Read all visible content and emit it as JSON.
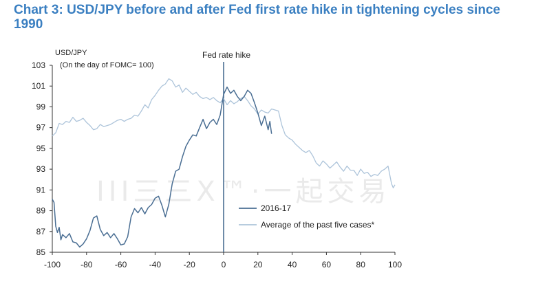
{
  "title": "Chart 3: USD/JPY before and after Fed first rate hike in tightening cycles since 1990",
  "watermark": "III三三X™·一起交易",
  "colors": {
    "title": "#3a7fc1",
    "series_dark": "#4a6e93",
    "series_light": "#adc4da",
    "axis": "#333333"
  },
  "chart_data": {
    "type": "line",
    "y_axis_label": "USD/JPY",
    "y_axis_sublabel": "(On the day of FOMC= 100)",
    "annotation": "Fed rate hike",
    "annotation_x": 0,
    "xlim": [
      -100,
      100
    ],
    "ylim": [
      85,
      103
    ],
    "x_ticks": [
      -100,
      -80,
      -60,
      -40,
      -20,
      0,
      20,
      40,
      60,
      80,
      100
    ],
    "x_tick_labels": [
      "-100",
      "-80",
      "-60",
      "-40",
      "-20",
      "0",
      "20",
      "40",
      "60",
      "80",
      "100"
    ],
    "y_ticks": [
      85,
      87,
      89,
      91,
      93,
      95,
      97,
      99,
      101,
      103
    ],
    "y_tick_labels": [
      "85",
      "87",
      "89",
      "91",
      "93",
      "95",
      "97",
      "99",
      "101",
      "103"
    ],
    "legend_position": "bottom-center",
    "series": [
      {
        "name": "2016-17",
        "color": "#4a6e93",
        "x": [
          -100,
          -99,
          -98,
          -97,
          -96,
          -95,
          -94,
          -92,
          -90,
          -88,
          -86,
          -84,
          -82,
          -80,
          -78,
          -76,
          -74,
          -72,
          -70,
          -68,
          -66,
          -64,
          -62,
          -60,
          -58,
          -56,
          -54,
          -52,
          -50,
          -48,
          -46,
          -44,
          -42,
          -40,
          -38,
          -36,
          -34,
          -32,
          -30,
          -28,
          -26,
          -24,
          -22,
          -20,
          -18,
          -16,
          -14,
          -12,
          -10,
          -8,
          -6,
          -4,
          -2,
          0,
          2,
          4,
          6,
          8,
          10,
          12,
          14,
          16,
          18,
          20,
          22,
          24,
          26,
          27,
          28
        ],
        "y": [
          90.1,
          89.8,
          87.5,
          86.9,
          87.4,
          86.2,
          86.7,
          86.4,
          86.8,
          86.0,
          85.9,
          85.5,
          85.8,
          86.3,
          87.1,
          88.3,
          88.5,
          87.2,
          86.6,
          86.9,
          86.4,
          86.8,
          86.3,
          85.7,
          85.8,
          86.5,
          88.4,
          89.2,
          88.8,
          89.3,
          88.7,
          89.3,
          89.6,
          90.2,
          90.4,
          89.5,
          88.4,
          89.6,
          91.6,
          92.8,
          93.0,
          94.2,
          95.2,
          95.8,
          96.3,
          96.2,
          97.0,
          97.8,
          96.9,
          97.5,
          97.8,
          97.3,
          98.2,
          100.2,
          100.9,
          100.3,
          100.6,
          100.0,
          99.6,
          100.0,
          100.6,
          100.3,
          99.4,
          98.4,
          97.2,
          98.1,
          96.8,
          97.6,
          96.4
        ]
      },
      {
        "name": "Average of the past five cases*",
        "color": "#adc4da",
        "x": [
          -100,
          -98,
          -96,
          -94,
          -92,
          -90,
          -88,
          -86,
          -84,
          -82,
          -80,
          -78,
          -76,
          -74,
          -72,
          -70,
          -68,
          -66,
          -64,
          -62,
          -60,
          -58,
          -56,
          -54,
          -52,
          -50,
          -48,
          -46,
          -44,
          -42,
          -40,
          -38,
          -36,
          -34,
          -32,
          -30,
          -28,
          -26,
          -24,
          -22,
          -20,
          -18,
          -16,
          -14,
          -12,
          -10,
          -8,
          -6,
          -4,
          -2,
          0,
          2,
          4,
          6,
          8,
          10,
          12,
          14,
          16,
          18,
          20,
          22,
          24,
          26,
          28,
          30,
          32,
          34,
          36,
          38,
          40,
          42,
          44,
          46,
          48,
          50,
          52,
          54,
          56,
          58,
          60,
          62,
          64,
          66,
          68,
          70,
          72,
          74,
          76,
          78,
          80,
          82,
          84,
          86,
          88,
          90,
          92,
          94,
          96,
          98,
          99,
          100
        ],
        "y": [
          96.2,
          96.5,
          97.4,
          97.3,
          97.6,
          97.5,
          98.0,
          97.6,
          97.7,
          97.9,
          97.5,
          97.2,
          96.8,
          96.9,
          97.3,
          97.1,
          97.2,
          97.3,
          97.5,
          97.7,
          97.8,
          97.6,
          97.8,
          97.9,
          98.2,
          98.1,
          98.6,
          99.2,
          98.9,
          99.7,
          100.1,
          100.6,
          101.0,
          101.2,
          101.7,
          101.5,
          100.9,
          101.1,
          100.4,
          100.8,
          100.5,
          100.2,
          100.4,
          100.0,
          99.8,
          99.9,
          99.7,
          99.9,
          99.6,
          99.4,
          99.8,
          99.2,
          99.6,
          99.3,
          99.5,
          99.8,
          100.0,
          99.6,
          99.1,
          98.8,
          98.3,
          98.7,
          98.5,
          98.4,
          98.8,
          98.7,
          98.6,
          97.2,
          96.3,
          96.0,
          95.8,
          95.4,
          95.1,
          94.8,
          94.6,
          94.8,
          94.3,
          93.6,
          93.3,
          93.8,
          93.5,
          93.1,
          93.4,
          93.7,
          93.2,
          92.8,
          93.3,
          92.9,
          92.9,
          92.4,
          93.0,
          92.6,
          92.7,
          92.3,
          92.5,
          92.4,
          92.8,
          93.0,
          93.3,
          91.6,
          91.2,
          91.5
        ]
      }
    ]
  }
}
